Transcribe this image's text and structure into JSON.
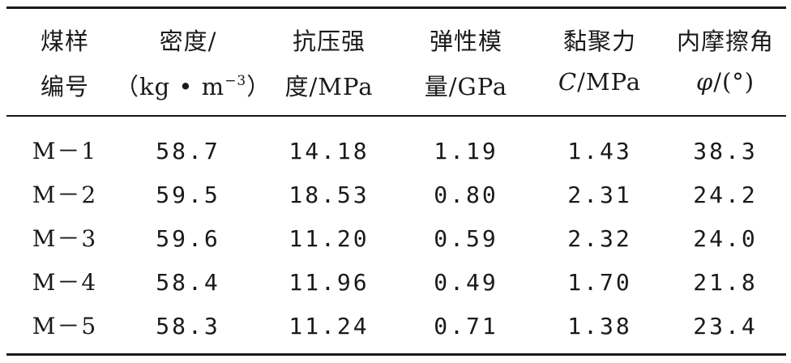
{
  "table": {
    "headers": [
      {
        "line1": "煤样",
        "line2": "编号"
      },
      {
        "line1": "密度/",
        "line2_pre": "（kg • m",
        "line2_sup": "−3",
        "line2_post": "）"
      },
      {
        "line1": "抗压强",
        "line2": "度/MPa"
      },
      {
        "line1": "弹性模",
        "line2": "量/GPa"
      },
      {
        "line1": "黏聚力",
        "line2_var": "C",
        "line2_rest": "/MPa"
      },
      {
        "line1": "内摩擦角",
        "line2_var": "φ",
        "line2_rest": "/(°)"
      }
    ],
    "rows": [
      [
        "M－1",
        "58.7",
        "14.18",
        "1.19",
        "1.43",
        "38.3"
      ],
      [
        "M－2",
        "59.5",
        "18.53",
        "0.80",
        "2.31",
        "24.2"
      ],
      [
        "M－3",
        "59.6",
        "11.20",
        "0.59",
        "2.32",
        "24.0"
      ],
      [
        "M－4",
        "58.4",
        "11.96",
        "0.49",
        "1.70",
        "21.8"
      ],
      [
        "M－5",
        "58.3",
        "11.24",
        "0.71",
        "1.38",
        "23.4"
      ]
    ]
  }
}
